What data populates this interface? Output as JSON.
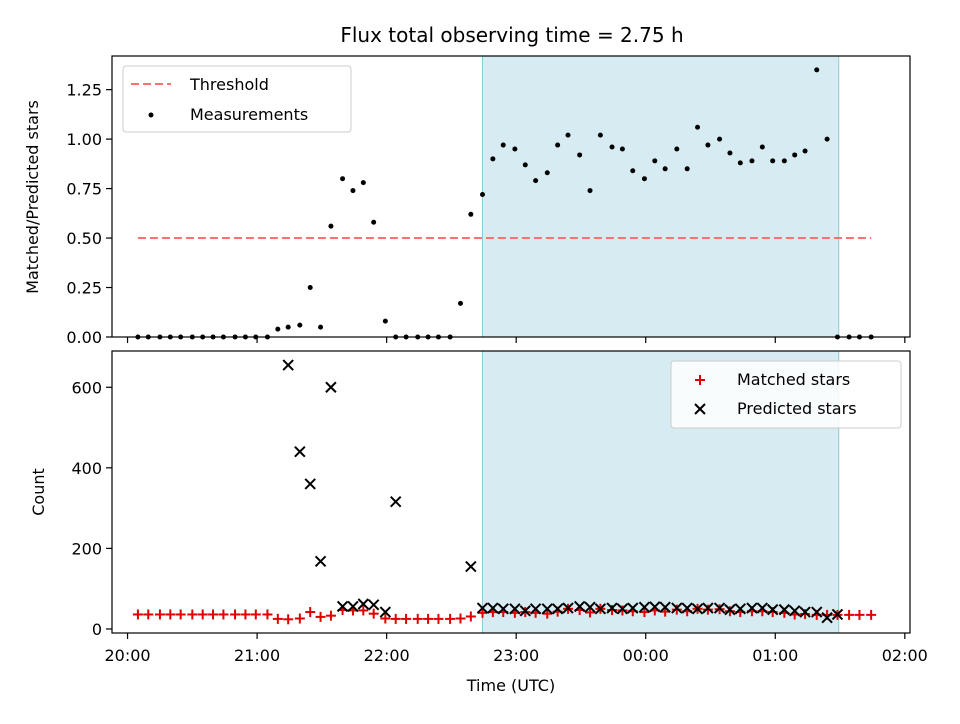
{
  "title": "Flux total observing time = 2.75 h",
  "colors": {
    "threshold": "#ff7070",
    "measurements": "#000000",
    "matched": "#e00000",
    "predicted": "#000000",
    "shade": "#add8e6"
  },
  "chart_data": [
    {
      "type": "scatter",
      "ylabel": "Matched/Predicted stars",
      "ylim": [
        0,
        1.42
      ],
      "yticks": [
        "0.00",
        "0.25",
        "0.50",
        "0.75",
        "1.00",
        "1.25"
      ],
      "xlim_hours": [
        19.88,
        26.04
      ],
      "shaded_span_hours": [
        22.74,
        25.49
      ],
      "grid": false,
      "legend_position": "upper-left",
      "legend": [
        {
          "label": "Threshold",
          "style": "dashed-line"
        },
        {
          "label": "Measurements",
          "style": "dot"
        }
      ],
      "series": [
        {
          "name": "Threshold",
          "type": "line",
          "x": [
            20.08,
            25.74
          ],
          "y": [
            0.5,
            0.5
          ]
        },
        {
          "name": "Measurements",
          "type": "scatter",
          "x": [
            20.08,
            20.16,
            20.25,
            20.33,
            20.41,
            20.5,
            20.58,
            20.66,
            20.74,
            20.83,
            20.91,
            20.99,
            21.08,
            21.16,
            21.24,
            21.33,
            21.41,
            21.49,
            21.57,
            21.66,
            21.74,
            21.82,
            21.9,
            21.99,
            22.07,
            22.15,
            22.24,
            22.32,
            22.4,
            22.49,
            22.57,
            22.65,
            22.74,
            22.82,
            22.9,
            22.99,
            23.07,
            23.15,
            23.24,
            23.32,
            23.4,
            23.49,
            23.57,
            23.65,
            23.74,
            23.82,
            23.9,
            23.99,
            24.07,
            24.15,
            24.24,
            24.32,
            24.4,
            24.48,
            24.57,
            24.65,
            24.73,
            24.82,
            24.9,
            24.98,
            25.07,
            25.15,
            25.23,
            25.32,
            25.4,
            25.48,
            25.57,
            25.65,
            25.74
          ],
          "y": [
            0,
            0,
            0,
            0,
            0,
            0,
            0,
            0,
            0,
            0,
            0,
            0,
            0,
            0.04,
            0.05,
            0.06,
            0.25,
            0.05,
            0.56,
            0.8,
            0.74,
            0.78,
            0.58,
            0.08,
            0,
            0,
            0,
            0,
            0,
            0,
            0.17,
            0.62,
            0.72,
            0.9,
            0.97,
            0.95,
            0.87,
            0.79,
            0.83,
            0.97,
            1.02,
            0.92,
            0.74,
            1.02,
            0.96,
            0.95,
            0.84,
            0.8,
            0.89,
            0.85,
            0.95,
            0.85,
            1.06,
            0.97,
            1.0,
            0.93,
            0.88,
            0.89,
            0.96,
            0.89,
            0.89,
            0.92,
            0.94,
            1.35,
            1.0,
            0,
            0,
            0,
            0
          ]
        }
      ]
    },
    {
      "type": "scatter",
      "xlabel": "Time (UTC)",
      "ylabel": "Count",
      "ylim": [
        -10,
        690
      ],
      "yticks": [
        "0",
        "200",
        "400",
        "600"
      ],
      "xticks": [
        "20:00",
        "21:00",
        "22:00",
        "23:00",
        "00:00",
        "01:00",
        "02:00"
      ],
      "xtick_hours": [
        20,
        21,
        22,
        23,
        24,
        25,
        26
      ],
      "xlim_hours": [
        19.88,
        26.04
      ],
      "shaded_span_hours": [
        22.74,
        25.49
      ],
      "grid": false,
      "legend_position": "upper-right",
      "legend": [
        {
          "label": "Matched stars",
          "style": "plus"
        },
        {
          "label": "Predicted stars",
          "style": "x"
        }
      ],
      "series": [
        {
          "name": "Matched stars",
          "type": "scatter",
          "marker": "+",
          "x": [
            20.08,
            20.16,
            20.25,
            20.33,
            20.41,
            20.5,
            20.58,
            20.66,
            20.74,
            20.83,
            20.91,
            20.99,
            21.08,
            21.16,
            21.24,
            21.33,
            21.41,
            21.49,
            21.57,
            21.66,
            21.74,
            21.82,
            21.9,
            21.99,
            22.07,
            22.15,
            22.24,
            22.32,
            22.4,
            22.49,
            22.57,
            22.65,
            22.74,
            22.82,
            22.9,
            22.99,
            23.07,
            23.15,
            23.24,
            23.32,
            23.4,
            23.49,
            23.57,
            23.65,
            23.74,
            23.82,
            23.9,
            23.99,
            24.07,
            24.15,
            24.24,
            24.32,
            24.4,
            24.48,
            24.57,
            24.65,
            24.73,
            24.82,
            24.9,
            24.98,
            25.07,
            25.15,
            25.23,
            25.32,
            25.4,
            25.48,
            25.57,
            25.65,
            25.74
          ],
          "y": [
            36,
            36,
            36,
            36,
            36,
            36,
            36,
            36,
            36,
            36,
            36,
            36,
            36,
            25,
            24,
            26,
            42,
            30,
            33,
            47,
            46,
            46,
            38,
            26,
            25,
            25,
            25,
            25,
            25,
            25,
            26,
            31,
            40,
            42,
            42,
            40,
            42,
            40,
            38,
            43,
            50,
            47,
            41,
            50,
            47,
            46,
            44,
            42,
            46,
            43,
            48,
            44,
            50,
            48,
            49,
            44,
            42,
            44,
            44,
            42,
            40,
            36,
            37,
            35,
            35,
            35,
            35,
            35,
            35
          ]
        },
        {
          "name": "Predicted stars",
          "type": "scatter",
          "marker": "x",
          "x": [
            21.24,
            21.33,
            21.41,
            21.49,
            21.57,
            21.66,
            21.74,
            21.82,
            21.9,
            21.99,
            22.07,
            22.65,
            22.74,
            22.82,
            22.9,
            22.99,
            23.07,
            23.15,
            23.24,
            23.32,
            23.4,
            23.49,
            23.57,
            23.65,
            23.74,
            23.82,
            23.9,
            23.99,
            24.07,
            24.15,
            24.24,
            24.32,
            24.4,
            24.48,
            24.57,
            24.65,
            24.73,
            24.82,
            24.9,
            24.98,
            25.07,
            25.15,
            25.23,
            25.32,
            25.4,
            25.48
          ],
          "y": [
            655,
            440,
            360,
            168,
            600,
            56,
            56,
            62,
            60,
            42,
            316,
            155,
            52,
            52,
            50,
            50,
            45,
            50,
            50,
            50,
            52,
            56,
            54,
            50,
            52,
            50,
            52,
            54,
            55,
            54,
            52,
            52,
            50,
            52,
            52,
            48,
            50,
            52,
            52,
            48,
            48,
            45,
            42,
            42,
            28,
            36
          ]
        }
      ]
    }
  ]
}
